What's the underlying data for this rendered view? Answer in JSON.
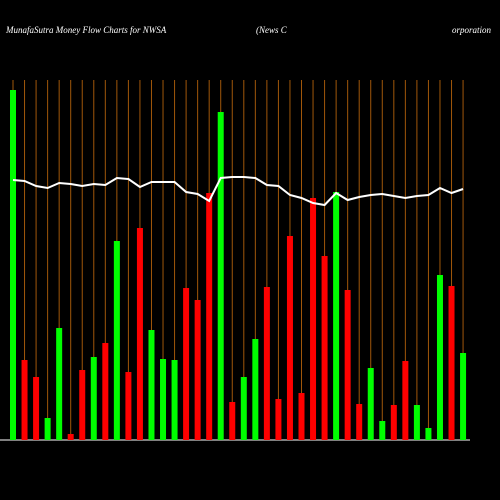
{
  "chart_data": {
    "type": "bar",
    "title": "MunafaSutra  Money Flow  Charts for NWSA",
    "subtitle": "(News C",
    "subtitle2": "orporation",
    "values": [
      350,
      80,
      63,
      22,
      112,
      6,
      70,
      83,
      97,
      199,
      68,
      212,
      110,
      81,
      80,
      152,
      140,
      247,
      328,
      38,
      63,
      101,
      153,
      41,
      204,
      47,
      242,
      184,
      248,
      150,
      36,
      72,
      19,
      35,
      79,
      35,
      12,
      165,
      154,
      87
    ],
    "colors": [
      "#00ff00",
      "#ff0000",
      "#ff0000",
      "#00ff00",
      "#00ff00",
      "#ff0000",
      "#ff0000",
      "#00ff00",
      "#ff0000",
      "#00ff00",
      "#ff0000",
      "#ff0000",
      "#00ff00",
      "#00ff00",
      "#00ff00",
      "#ff0000",
      "#ff0000",
      "#ff0000",
      "#00ff00",
      "#ff0000",
      "#00ff00",
      "#00ff00",
      "#ff0000",
      "#ff0000",
      "#ff0000",
      "#ff0000",
      "#ff0000",
      "#ff0000",
      "#00ff00",
      "#ff0000",
      "#ff0000",
      "#00ff00",
      "#00ff00",
      "#ff0000",
      "#ff0000",
      "#00ff00",
      "#00ff00",
      "#00ff00",
      "#ff0000",
      "#00ff00"
    ],
    "line": {
      "color": "#ffffff",
      "values": [
        260,
        259,
        254,
        252,
        257,
        256,
        254,
        256,
        255,
        262,
        261,
        253,
        258,
        258,
        258,
        248,
        246,
        239,
        262,
        263,
        263,
        262,
        255,
        254,
        245,
        242,
        237,
        235,
        247,
        240,
        243,
        245,
        246,
        244,
        242,
        244,
        245,
        252,
        247,
        251
      ]
    },
    "ylim": [
      0,
      360
    ]
  }
}
